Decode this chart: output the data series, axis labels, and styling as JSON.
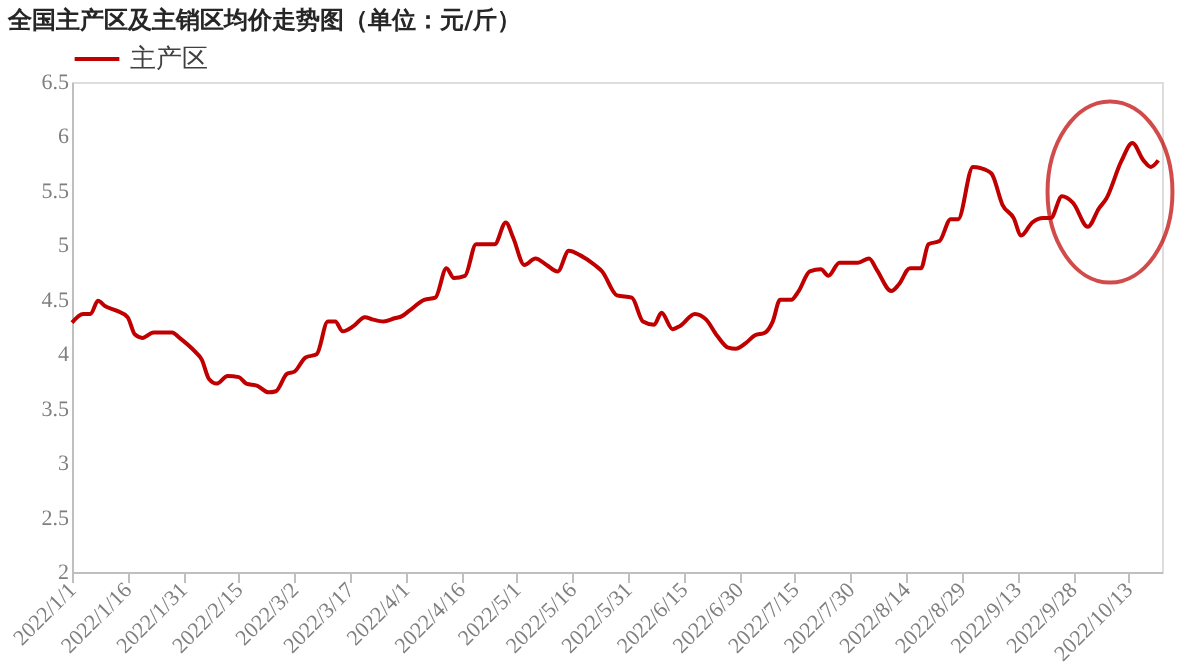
{
  "chart_data": {
    "type": "line",
    "title": "全国主产区及主销区均价走势图（单位：元/斤）",
    "legend": "top",
    "grid": false,
    "marker": "none",
    "line_style": "solid",
    "xlim": [
      "2022-01-01",
      "2022-10-22"
    ],
    "xticks": [
      {
        "value": "2022-01-01",
        "label": "2022/1/1"
      },
      {
        "value": "2022-01-16",
        "label": "2022/1/16"
      },
      {
        "value": "2022-01-31",
        "label": "2022/1/31"
      },
      {
        "value": "2022-02-15",
        "label": "2022/2/15"
      },
      {
        "value": "2022-03-02",
        "label": "2022/3/2"
      },
      {
        "value": "2022-03-17",
        "label": "2022/3/17"
      },
      {
        "value": "2022-04-01",
        "label": "2022/4/1"
      },
      {
        "value": "2022-04-16",
        "label": "2022/4/16"
      },
      {
        "value": "2022-05-01",
        "label": "2022/5/1"
      },
      {
        "value": "2022-05-16",
        "label": "2022/5/16"
      },
      {
        "value": "2022-05-31",
        "label": "2022/5/31"
      },
      {
        "value": "2022-06-15",
        "label": "2022/6/15"
      },
      {
        "value": "2022-06-30",
        "label": "2022/6/30"
      },
      {
        "value": "2022-07-15",
        "label": "2022/7/15"
      },
      {
        "value": "2022-07-30",
        "label": "2022/7/30"
      },
      {
        "value": "2022-08-14",
        "label": "2022/8/14"
      },
      {
        "value": "2022-08-29",
        "label": "2022/8/29"
      },
      {
        "value": "2022-09-13",
        "label": "2022/9/13"
      },
      {
        "value": "2022-09-28",
        "label": "2022/9/28"
      },
      {
        "value": "2022-10-13",
        "label": "2022/10/13"
      }
    ],
    "ylim": [
      2,
      6.5
    ],
    "yticks": [
      2,
      2.5,
      3,
      3.5,
      4,
      4.5,
      5,
      5.5,
      6,
      6.5
    ],
    "x": [
      "2022-01-01",
      "2022-01-04",
      "2022-01-06",
      "2022-01-08",
      "2022-01-10",
      "2022-01-13",
      "2022-01-16",
      "2022-01-18",
      "2022-01-20",
      "2022-01-23",
      "2022-01-28",
      "2022-01-30",
      "2022-02-03",
      "2022-02-05",
      "2022-02-07",
      "2022-02-09",
      "2022-02-12",
      "2022-02-15",
      "2022-02-17",
      "2022-02-20",
      "2022-02-23",
      "2022-02-25",
      "2022-02-28",
      "2022-03-02",
      "2022-03-05",
      "2022-03-08",
      "2022-03-11",
      "2022-03-13",
      "2022-03-15",
      "2022-03-18",
      "2022-03-21",
      "2022-03-23",
      "2022-03-26",
      "2022-03-29",
      "2022-03-31",
      "2022-04-02",
      "2022-04-06",
      "2022-04-09",
      "2022-04-12",
      "2022-04-14",
      "2022-04-17",
      "2022-04-20",
      "2022-04-22",
      "2022-04-25",
      "2022-04-28",
      "2022-04-30",
      "2022-05-03",
      "2022-05-06",
      "2022-05-09",
      "2022-05-12",
      "2022-05-15",
      "2022-05-18",
      "2022-05-22",
      "2022-05-24",
      "2022-05-28",
      "2022-06-01",
      "2022-06-04",
      "2022-06-07",
      "2022-06-09",
      "2022-06-12",
      "2022-06-14",
      "2022-06-18",
      "2022-06-21",
      "2022-06-24",
      "2022-06-27",
      "2022-06-29",
      "2022-07-02",
      "2022-07-04",
      "2022-07-07",
      "2022-07-09",
      "2022-07-11",
      "2022-07-14",
      "2022-07-16",
      "2022-07-19",
      "2022-07-22",
      "2022-07-24",
      "2022-07-27",
      "2022-08-01",
      "2022-08-04",
      "2022-08-06",
      "2022-08-10",
      "2022-08-12",
      "2022-08-15",
      "2022-08-18",
      "2022-08-20",
      "2022-08-23",
      "2022-08-26",
      "2022-08-28",
      "2022-09-01",
      "2022-09-03",
      "2022-09-06",
      "2022-09-09",
      "2022-09-12",
      "2022-09-14",
      "2022-09-17",
      "2022-09-20",
      "2022-09-22",
      "2022-09-25",
      "2022-09-28",
      "2022-10-02",
      "2022-10-05",
      "2022-10-07",
      "2022-10-11",
      "2022-10-14",
      "2022-10-17",
      "2022-10-19",
      "2022-10-21"
    ],
    "series": [
      {
        "name": "主产区",
        "color": "#c00000",
        "values": [
          4.29,
          4.37,
          4.37,
          4.49,
          4.44,
          4.4,
          4.34,
          4.18,
          4.15,
          4.2,
          4.2,
          4.15,
          4.03,
          3.95,
          3.77,
          3.73,
          3.8,
          3.79,
          3.73,
          3.71,
          3.65,
          3.66,
          3.82,
          3.84,
          3.97,
          4.0,
          4.3,
          4.3,
          4.21,
          4.26,
          4.34,
          4.32,
          4.3,
          4.33,
          4.35,
          4.4,
          4.5,
          4.52,
          4.79,
          4.7,
          4.72,
          5.01,
          5.01,
          5.01,
          5.21,
          5.07,
          4.82,
          4.88,
          4.82,
          4.76,
          4.95,
          4.91,
          4.82,
          4.76,
          4.54,
          4.52,
          4.3,
          4.27,
          4.38,
          4.23,
          4.26,
          4.37,
          4.32,
          4.17,
          4.06,
          4.05,
          4.11,
          4.17,
          4.2,
          4.3,
          4.5,
          4.5,
          4.58,
          4.76,
          4.78,
          4.72,
          4.84,
          4.84,
          4.88,
          4.78,
          4.58,
          4.64,
          4.79,
          4.79,
          5.01,
          5.04,
          5.24,
          5.24,
          5.72,
          5.71,
          5.66,
          5.37,
          5.25,
          5.09,
          5.21,
          5.25,
          5.25,
          5.45,
          5.39,
          5.17,
          5.34,
          5.43,
          5.77,
          5.94,
          5.78,
          5.72,
          5.78
        ]
      }
    ]
  }
}
